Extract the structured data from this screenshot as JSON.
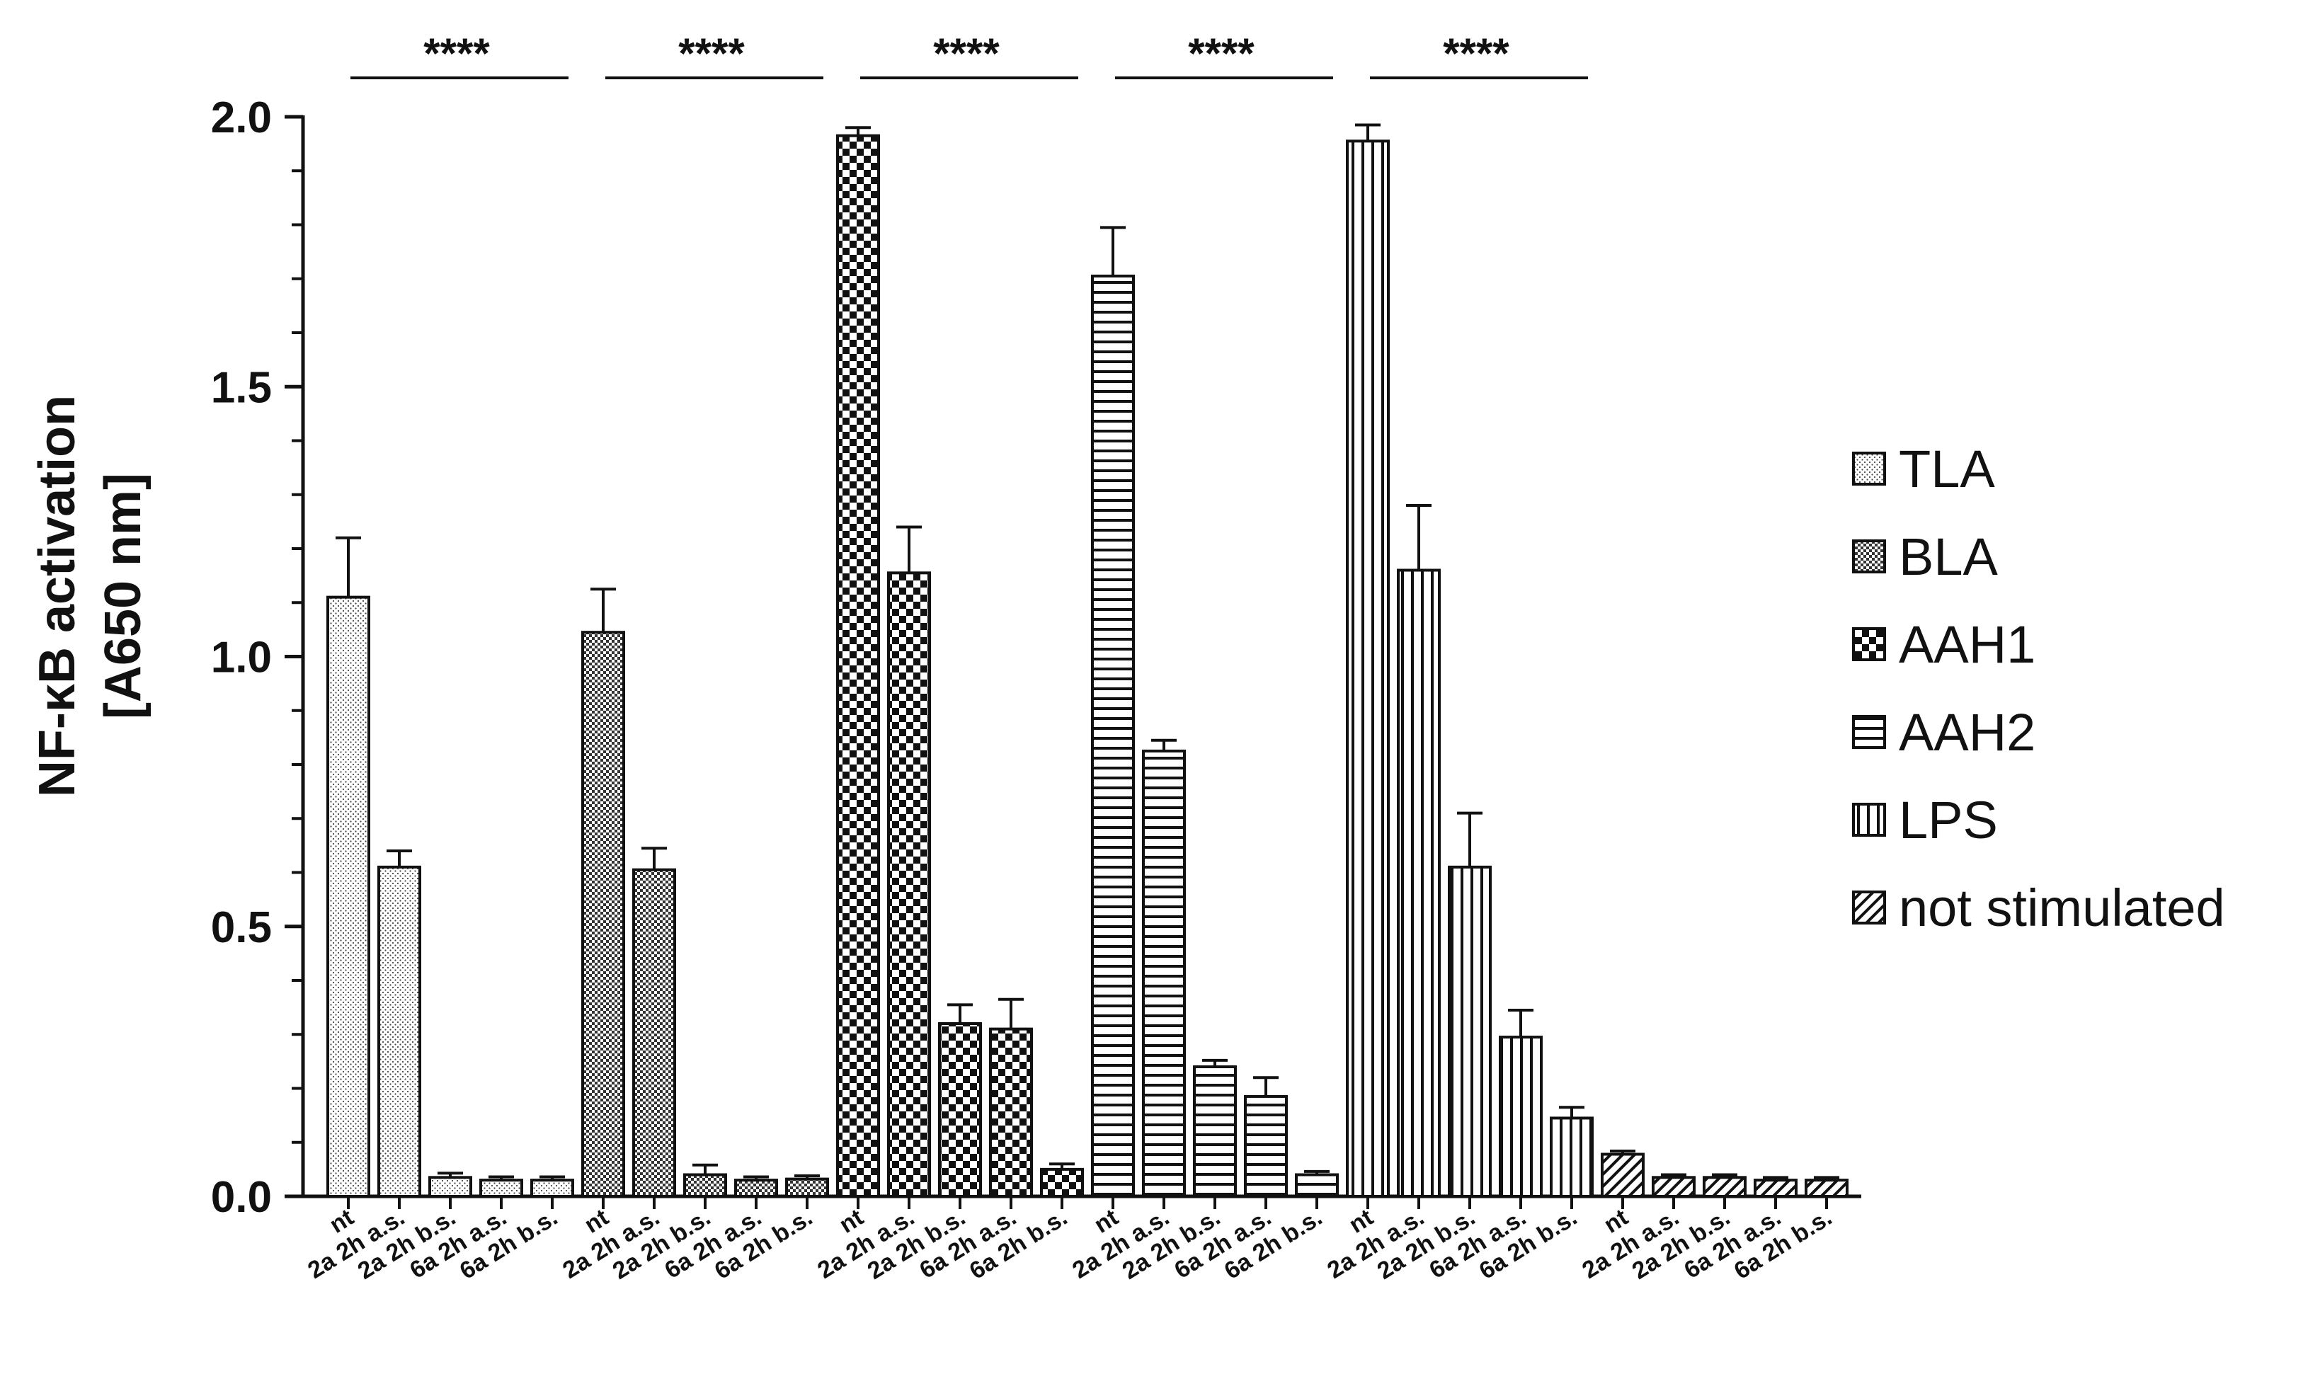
{
  "chart_data": {
    "type": "bar",
    "ylabel": [
      "NF-κB activation",
      "[A650 nm]"
    ],
    "ylim": [
      0,
      2.0
    ],
    "yticks": [
      "0.0",
      "0.5",
      "1.0",
      "1.5",
      "2.0"
    ],
    "categories": [
      "nt",
      "2a 2h a.s.",
      "2a 2h b.s.",
      "6a 2h a.s.",
      "6a 2h b.s."
    ],
    "significance": "****",
    "series": [
      {
        "name": "TLA",
        "pattern": "dots",
        "values": [
          1.11,
          0.61,
          0.035,
          0.03,
          0.03
        ],
        "errors": [
          0.11,
          0.03,
          0.008,
          0.006,
          0.006
        ]
      },
      {
        "name": "BLA",
        "pattern": "fine-check",
        "values": [
          1.045,
          0.605,
          0.04,
          0.03,
          0.032
        ],
        "errors": [
          0.08,
          0.04,
          0.018,
          0.006,
          0.006
        ]
      },
      {
        "name": "AAH1",
        "pattern": "check",
        "values": [
          1.965,
          1.155,
          0.32,
          0.31,
          0.05
        ],
        "errors": [
          0.015,
          0.085,
          0.035,
          0.055,
          0.01
        ]
      },
      {
        "name": "AAH2",
        "pattern": "horizontal",
        "values": [
          1.705,
          0.825,
          0.24,
          0.185,
          0.04
        ],
        "errors": [
          0.09,
          0.02,
          0.012,
          0.035,
          0.006
        ]
      },
      {
        "name": "LPS",
        "pattern": "vertical",
        "values": [
          1.955,
          1.16,
          0.61,
          0.295,
          0.145
        ],
        "errors": [
          0.03,
          0.12,
          0.1,
          0.05,
          0.02
        ]
      },
      {
        "name": "not stimulated",
        "pattern": "diagonal",
        "values": [
          0.078,
          0.035,
          0.035,
          0.03,
          0.03
        ],
        "errors": [
          0.006,
          0.005,
          0.005,
          0.005,
          0.005
        ]
      }
    ],
    "legend_position": "right",
    "grid": false
  }
}
